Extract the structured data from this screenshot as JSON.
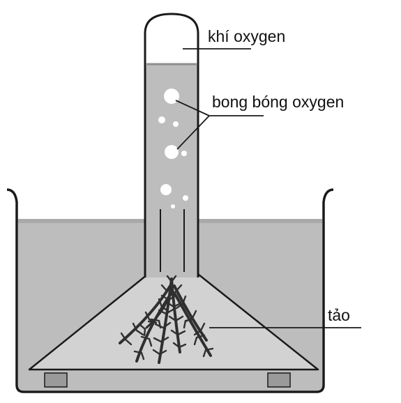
{
  "labels": {
    "gas": "khí oxygen",
    "bubbles": "bong bóng oxygen",
    "algae": "tảo"
  },
  "colors": {
    "water": "#bdbdbd",
    "water_surface": "#a9a9a9",
    "funnel": "#d2d2d2",
    "outline": "#1a1a1a",
    "algae": "#2f2f2f",
    "supports": "#9a9a9a",
    "bubble": "#ffffff",
    "tube_gas": "#ffffff"
  }
}
